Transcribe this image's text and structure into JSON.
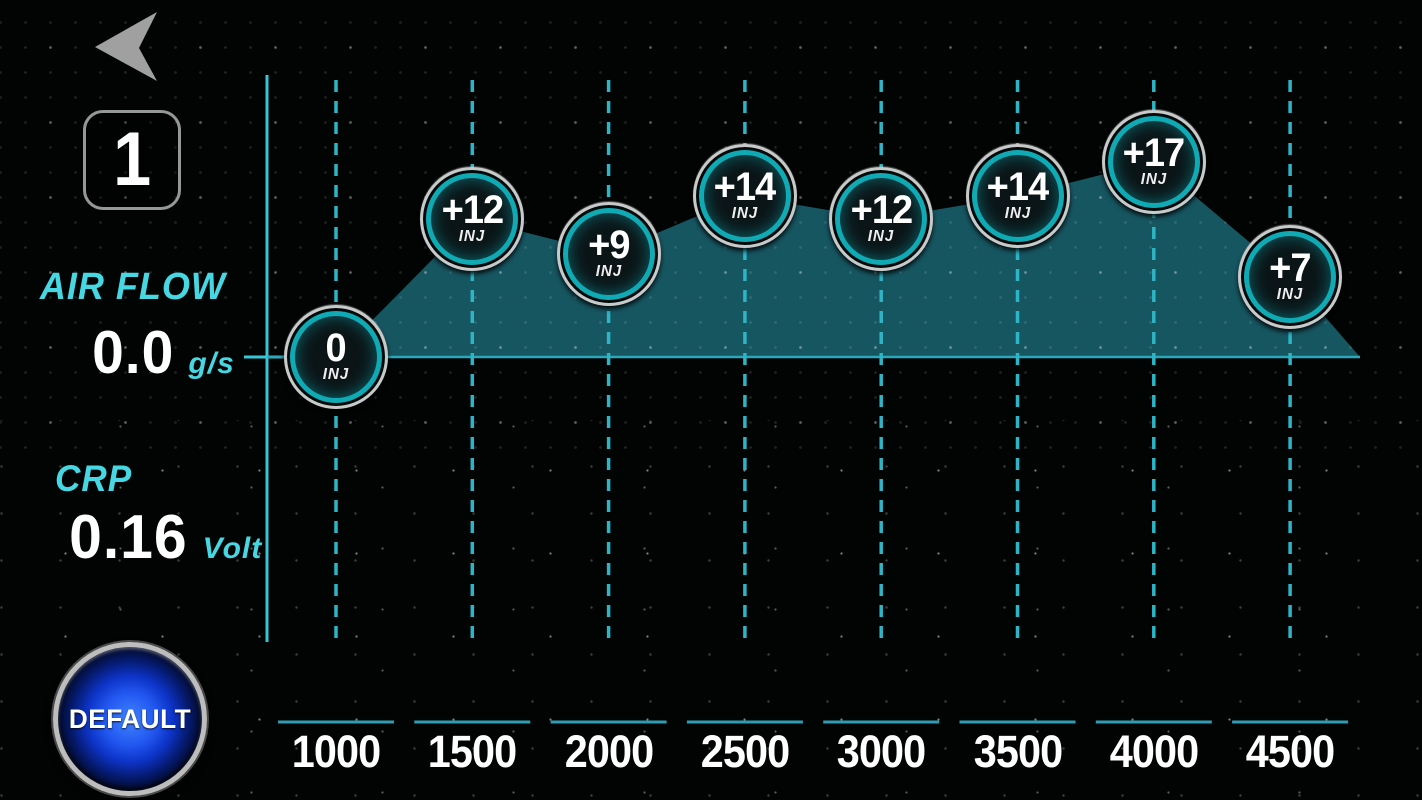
{
  "header": {
    "back_icon": "left-arrow",
    "map_number": "1"
  },
  "readouts": {
    "airflow_label": "AIR FLOW",
    "airflow_value": "0.0",
    "airflow_unit": "g/s",
    "crp_label": "CRP",
    "crp_value": "0.16",
    "crp_unit": "Volt"
  },
  "buttons": {
    "default_label": "DEFAULT"
  },
  "chart_data": {
    "type": "area",
    "x": [
      1000,
      1500,
      2000,
      2500,
      3000,
      3500,
      4000,
      4500
    ],
    "x_tick_labels": [
      "1000",
      "1500",
      "2000",
      "2500",
      "3000",
      "3500",
      "4000",
      "4500"
    ],
    "values": [
      0,
      12,
      9,
      14,
      12,
      14,
      17,
      7
    ],
    "point_labels": [
      "0",
      "+12",
      "+9",
      "+14",
      "+12",
      "+14",
      "+17",
      "+7"
    ],
    "point_unit": "INJ",
    "baseline_value": 0,
    "grid": "vertical-dashed",
    "legend": "none",
    "title": ""
  },
  "colors": {
    "accent_cyan": "#46d7e3",
    "axis_cyan": "#38c6d7",
    "dash_cyan": "#2db4c6",
    "tick_segment": "#2f9cb4",
    "area_fill": "#17596500",
    "area_fill_solid": "#175965",
    "baseline_line": "#2aa8ba",
    "marker_ring": "#10aab4",
    "button_blue": "#2257f0",
    "text_white": "#ffffff"
  }
}
